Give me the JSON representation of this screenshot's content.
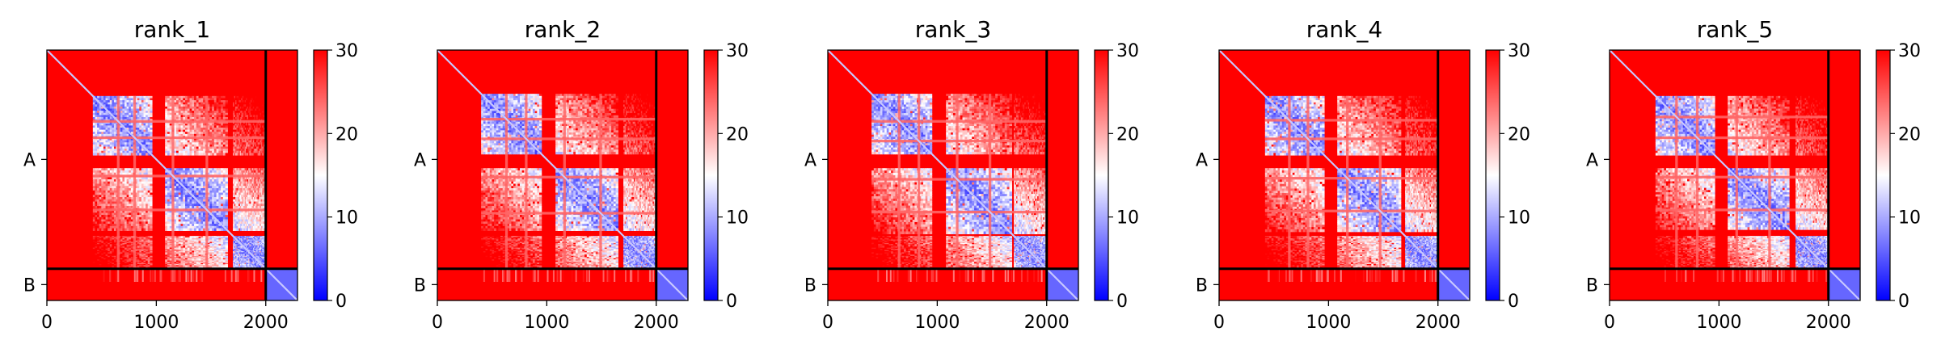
{
  "chart_data": {
    "type": "heatmap",
    "colormap": {
      "name": "bwr",
      "low": "#0000ff",
      "mid": "#ffffff",
      "high": "#ff0000"
    },
    "chain_labels": [
      "A",
      "B"
    ],
    "chain_boundary": 2000,
    "residue_count": 2290,
    "panels": [
      {
        "title": "rank_1",
        "xticks": [
          0,
          1000,
          2000
        ],
        "xtick_labels": [
          "0",
          "1000",
          "2000"
        ],
        "colorbar": {
          "ticks": [
            0,
            10,
            20,
            30
          ],
          "tick_labels": [
            "0",
            "10",
            "20",
            "30"
          ],
          "range": [
            0,
            30
          ]
        },
        "low_blocks": [
          [
            420,
            960
          ],
          [
            1080,
            1650
          ],
          [
            1700,
            2000
          ]
        ],
        "stripe_rows": [
          640,
          790,
          1140,
          1450
        ]
      },
      {
        "title": "rank_2",
        "xticks": [
          0,
          1000,
          2000
        ],
        "xtick_labels": [
          "0",
          "1000",
          "2000"
        ],
        "colorbar": {
          "ticks": [
            0,
            10,
            20,
            30
          ],
          "tick_labels": [
            "0",
            "10",
            "20",
            "30"
          ],
          "range": [
            0,
            30
          ]
        },
        "low_blocks": [
          [
            400,
            950
          ],
          [
            1080,
            1650
          ],
          [
            1700,
            2000
          ]
        ],
        "stripe_rows": [
          620,
          800,
          1150,
          1480
        ]
      },
      {
        "title": "rank_3",
        "xticks": [
          0,
          1000,
          2000
        ],
        "xtick_labels": [
          "0",
          "1000",
          "2000"
        ],
        "colorbar": {
          "ticks": [
            0,
            10,
            20,
            30
          ],
          "tick_labels": [
            "0",
            "10",
            "20",
            "30"
          ],
          "range": [
            0,
            30
          ]
        },
        "low_blocks": [
          [
            400,
            950
          ],
          [
            1080,
            1680
          ],
          [
            1700,
            2000
          ]
        ],
        "stripe_rows": [
          640,
          820,
          1170,
          1470
        ]
      },
      {
        "title": "rank_4",
        "xticks": [
          0,
          1000,
          2000
        ],
        "xtick_labels": [
          "0",
          "1000",
          "2000"
        ],
        "colorbar": {
          "ticks": [
            0,
            10,
            20,
            30
          ],
          "tick_labels": [
            "0",
            "10",
            "20",
            "30"
          ],
          "range": [
            0,
            30
          ]
        },
        "low_blocks": [
          [
            420,
            960
          ],
          [
            1080,
            1660
          ],
          [
            1700,
            2000
          ]
        ],
        "stripe_rows": [
          630,
          800,
          1160,
          1460
        ]
      },
      {
        "title": "rank_5",
        "xticks": [
          0,
          1000,
          2000
        ],
        "xtick_labels": [
          "0",
          "1000",
          "2000"
        ],
        "colorbar": {
          "ticks": [
            0,
            10,
            20,
            30
          ],
          "tick_labels": [
            "0",
            "10",
            "20",
            "30"
          ],
          "range": [
            0,
            30
          ]
        },
        "low_blocks": [
          [
            420,
            960
          ],
          [
            1080,
            1640
          ],
          [
            1700,
            2000
          ]
        ],
        "stripe_rows": [
          600,
          790,
          1150,
          1450
        ]
      }
    ]
  }
}
